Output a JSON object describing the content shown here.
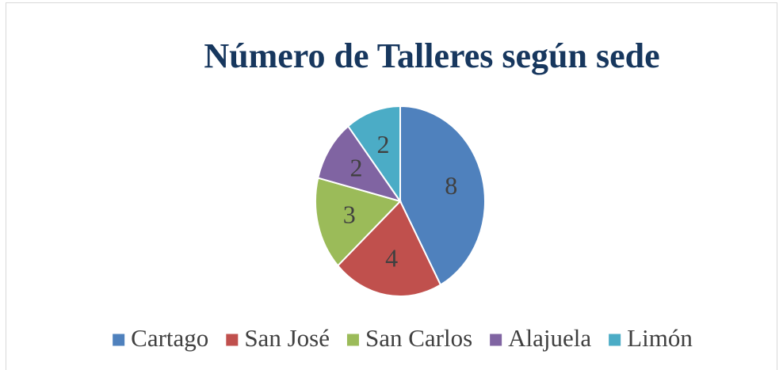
{
  "chart_data": {
    "type": "pie",
    "title": "Número de Talleres según sede",
    "categories": [
      "Cartago",
      "San José",
      "San Carlos",
      "Alajuela",
      "Limón"
    ],
    "values": [
      8,
      4,
      3,
      2,
      2
    ],
    "colors": [
      "#4f81bd",
      "#c0504d",
      "#9bbb59",
      "#8064a2",
      "#4bacc6"
    ],
    "legend": "bottom"
  }
}
